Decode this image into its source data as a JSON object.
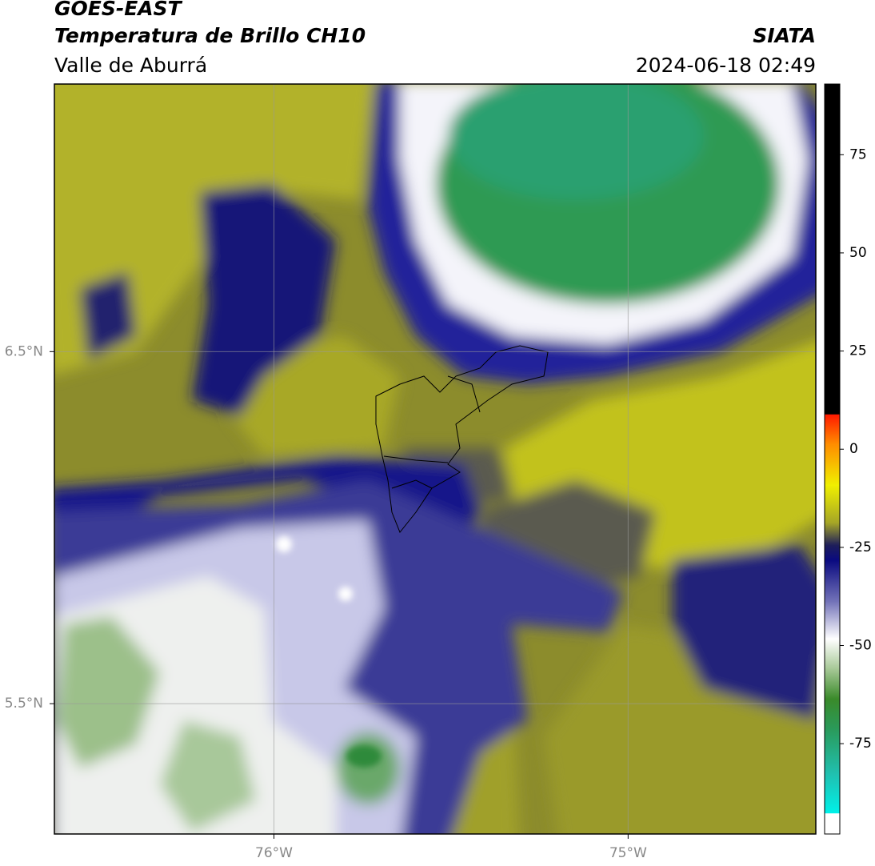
{
  "header": {
    "source": "GOES-EAST",
    "product": "Temperatura de Brillo CH10",
    "region": "Valle de Aburrá",
    "agency": "SIATA",
    "datetime": "2024-06-18 02:49"
  },
  "map": {
    "xlim": [
      -76.62,
      -74.47
    ],
    "ylim": [
      5.13,
      7.26
    ],
    "xticks": [
      {
        "value": -76,
        "label": "76°W"
      },
      {
        "value": -75,
        "label": "75°W"
      }
    ],
    "yticks": [
      {
        "value": 6.5,
        "label": "6.5°N"
      },
      {
        "value": 5.5,
        "label": "5.5°N"
      }
    ],
    "grid": true
  },
  "colorbar": {
    "lim": [
      -98,
      93
    ],
    "ticks": [
      75,
      50,
      25,
      0,
      -25,
      -50,
      -75
    ]
  }
}
